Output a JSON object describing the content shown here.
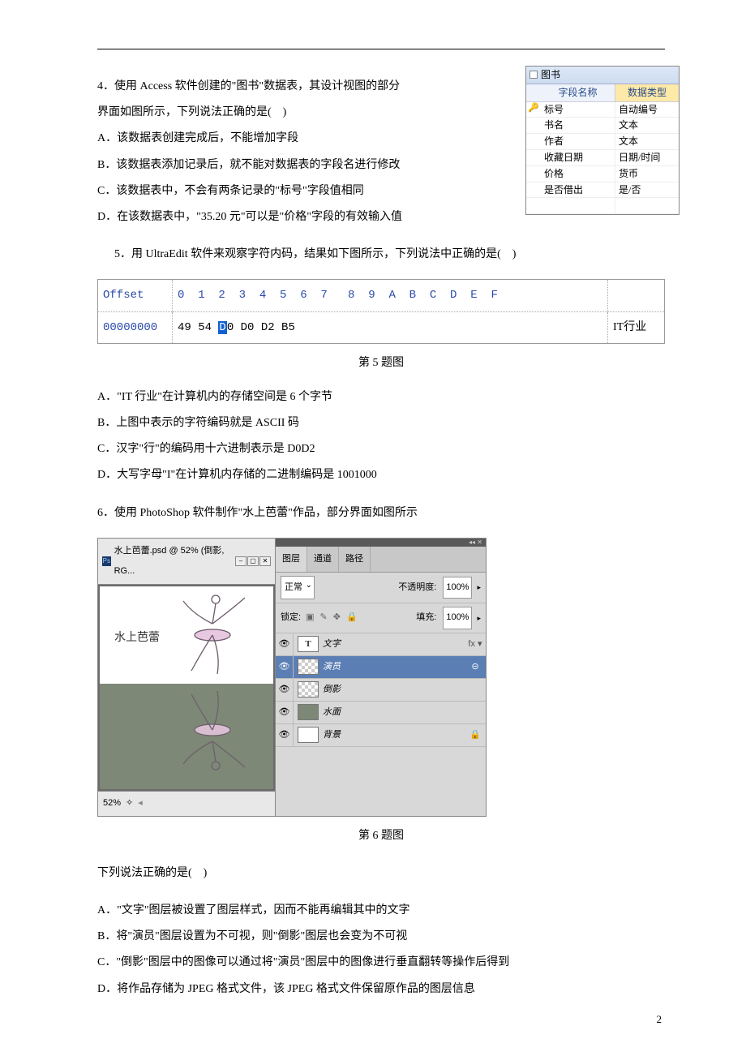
{
  "q4": {
    "text_line1": "4．使用 Access 软件创建的\"图书\"数据表，其设计视图的部分",
    "text_line2": "界面如图所示，下列说法正确的是(　)",
    "optA": "A．该数据表创建完成后，不能增加字段",
    "optB": "B．该数据表添加记录后，就不能对数据表的字段名进行修改",
    "optC": "C．该数据表中，不会有两条记录的\"标号\"字段值相同",
    "optD": "D．在该数据表中，\"35.20 元\"可以是\"价格\"字段的有效输入值"
  },
  "access": {
    "title": "图书",
    "hcol1": "字段名称",
    "hcol2": "数据类型",
    "rows": [
      {
        "key": "🔑",
        "name": "标号",
        "type": "自动编号"
      },
      {
        "key": "",
        "name": "书名",
        "type": "文本"
      },
      {
        "key": "",
        "name": "作者",
        "type": "文本"
      },
      {
        "key": "",
        "name": "收藏日期",
        "type": "日期/时间"
      },
      {
        "key": "",
        "name": "价格",
        "type": "货币"
      },
      {
        "key": "",
        "name": "是否借出",
        "type": "是/否"
      }
    ]
  },
  "q5": {
    "intro": "5．用 UltraEdit 软件来观察字符内码，结果如下图所示，下列说法中正确的是(　)",
    "offset_label": "Offset",
    "offset_val": "00000000",
    "hex_cols": "0  1  2  3  4  5  6  7   8  9  A  B  C  D  E  F",
    "hex_pre": "49 54 ",
    "hex_sel": "D",
    "hex_post": "0 D0 D2 B5",
    "ascii": "IT行业",
    "caption": "第 5 题图",
    "optA": "A．\"IT 行业\"在计算机内的存储空间是 6 个字节",
    "optB": "B．上图中表示的字符编码就是 ASCII 码",
    "optC": "C．汉字\"行\"的编码用十六进制表示是 D0D2",
    "optD": "D．大写字母\"I\"在计算机内存储的二进制编码是 1001000"
  },
  "q6": {
    "intro": "6．使用 PhotoShop 软件制作\"水上芭蕾\"作品，部分界面如图所示",
    "caption": "第 6 题图",
    "tail": "下列说法正确的是(　)",
    "optA": "A．\"文字\"图层被设置了图层样式，因而不能再编辑其中的文字",
    "optB": "B．将\"演员\"图层设置为不可视，则\"倒影\"图层也会变为不可视",
    "optC": "C．\"倒影\"图层中的图像可以通过将\"演员\"图层中的图像进行垂直翻转等操作后得到",
    "optD": "D．将作品存储为 JPEG 格式文件，该 JPEG 格式文件保留原作品的图层信息"
  },
  "ps": {
    "doc_title": "水上芭蕾.psd @ 52% (倒影, RG...",
    "canvas_text": "水上芭蕾",
    "zoom": "52%",
    "tabs": {
      "t1": "图层",
      "t2": "通道",
      "t3": "路径"
    },
    "blend": "正常",
    "opacity_label": "不透明度:",
    "opacity_val": "100%",
    "lock_label": "锁定:",
    "fill_label": "填充:",
    "fill_val": "100%",
    "layers": [
      {
        "name": "文字",
        "thumb": "text",
        "right": "fx ▾",
        "sel": false
      },
      {
        "name": "演员",
        "thumb": "checker",
        "right": "⊝",
        "sel": true
      },
      {
        "name": "倒影",
        "thumb": "checker",
        "right": "",
        "sel": false
      },
      {
        "name": "水面",
        "thumb": "water",
        "right": "",
        "sel": false
      },
      {
        "name": "背景",
        "thumb": "bg",
        "right": "🔒",
        "sel": false
      }
    ]
  },
  "page_number": "2"
}
